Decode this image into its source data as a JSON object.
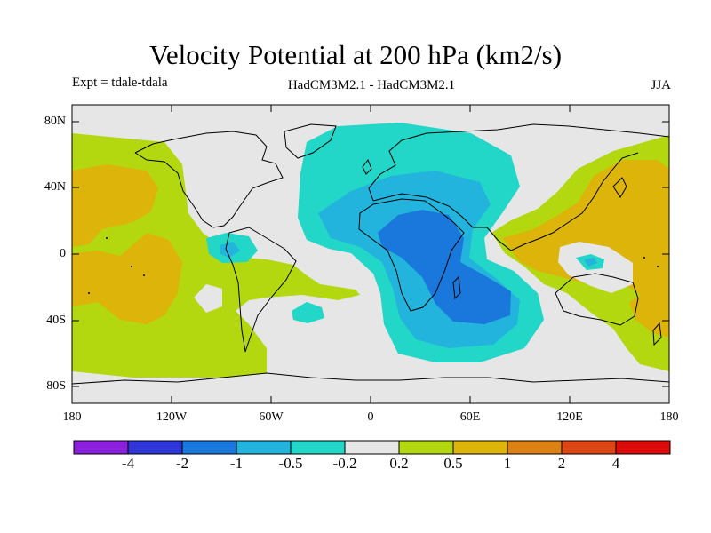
{
  "title": "Velocity Potential at 200 hPa (km2/s)",
  "experiment": "Expt = tdale-tdala",
  "models": "HadCM3M2.1 - HadCM3M2.1",
  "season": "JJA",
  "map": {
    "projection": "cylindrical equidistant",
    "lon_range": [
      -180,
      180
    ],
    "lat_range": [
      -90,
      90
    ],
    "y_ticks": [
      "80N",
      "40N",
      "0",
      "40S",
      "80S"
    ],
    "x_ticks": [
      "180",
      "120W",
      "60W",
      "0",
      "60E",
      "120E",
      "180"
    ],
    "regions": [
      {
        "name": "african-strong-negative",
        "level": "-1 to -2"
      },
      {
        "name": "african-negative",
        "level": "-0.5 to -1"
      },
      {
        "name": "atlantic-eurasia-weak-negative",
        "level": "-0.2 to -0.5"
      },
      {
        "name": "central-america-weak-negative",
        "level": "-0.2 to -0.5"
      },
      {
        "name": "pacific-positive",
        "level": "0.2 to 1"
      },
      {
        "name": "west-pacific-positive",
        "level": "0.2 to 1"
      }
    ]
  },
  "colorbar": {
    "colors": [
      "#8a1fdc",
      "#2e36d8",
      "#1a78dc",
      "#22b4dc",
      "#22d6c8",
      "#e6e6e6",
      "#b4d810",
      "#dcb40a",
      "#dc8214",
      "#dc4614",
      "#dc0a0a"
    ],
    "labels": [
      "-4",
      "-2",
      "-1",
      "-0.5",
      "-0.2",
      "0.2",
      "0.5",
      "1",
      "2",
      "4"
    ]
  },
  "colors": {
    "neutral": "#e6e6e6",
    "neg1": "#22d6c8",
    "neg2": "#22b4dc",
    "neg3": "#1a78dc",
    "pos1": "#b4d810",
    "pos2": "#dcb40a",
    "pos3": "#dc8214"
  }
}
